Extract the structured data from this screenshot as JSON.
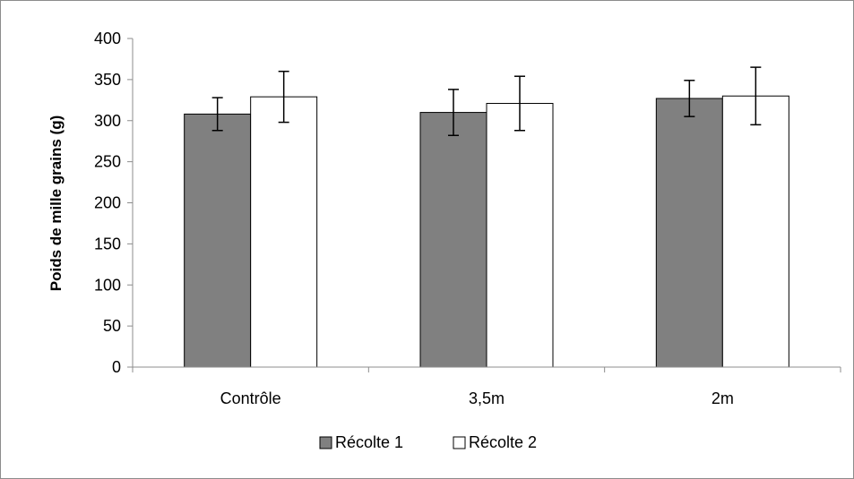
{
  "chart_data": {
    "type": "bar",
    "title": "",
    "xlabel": "",
    "ylabel": "Poids de mille grains (g)",
    "ylim": [
      0,
      400
    ],
    "yticks": [
      0,
      50,
      100,
      150,
      200,
      250,
      300,
      350,
      400
    ],
    "grid": false,
    "legend_position": "bottom",
    "categories": [
      "Contrôle",
      "3,5m",
      "2m"
    ],
    "series": [
      {
        "name": "Récolte 1",
        "color": "#808080",
        "values": [
          308,
          310,
          327
        ],
        "errors": [
          20,
          28,
          22
        ]
      },
      {
        "name": "Récolte 2",
        "color": "#ffffff",
        "values": [
          329,
          321,
          330
        ],
        "errors": [
          31,
          33,
          35
        ]
      }
    ]
  }
}
